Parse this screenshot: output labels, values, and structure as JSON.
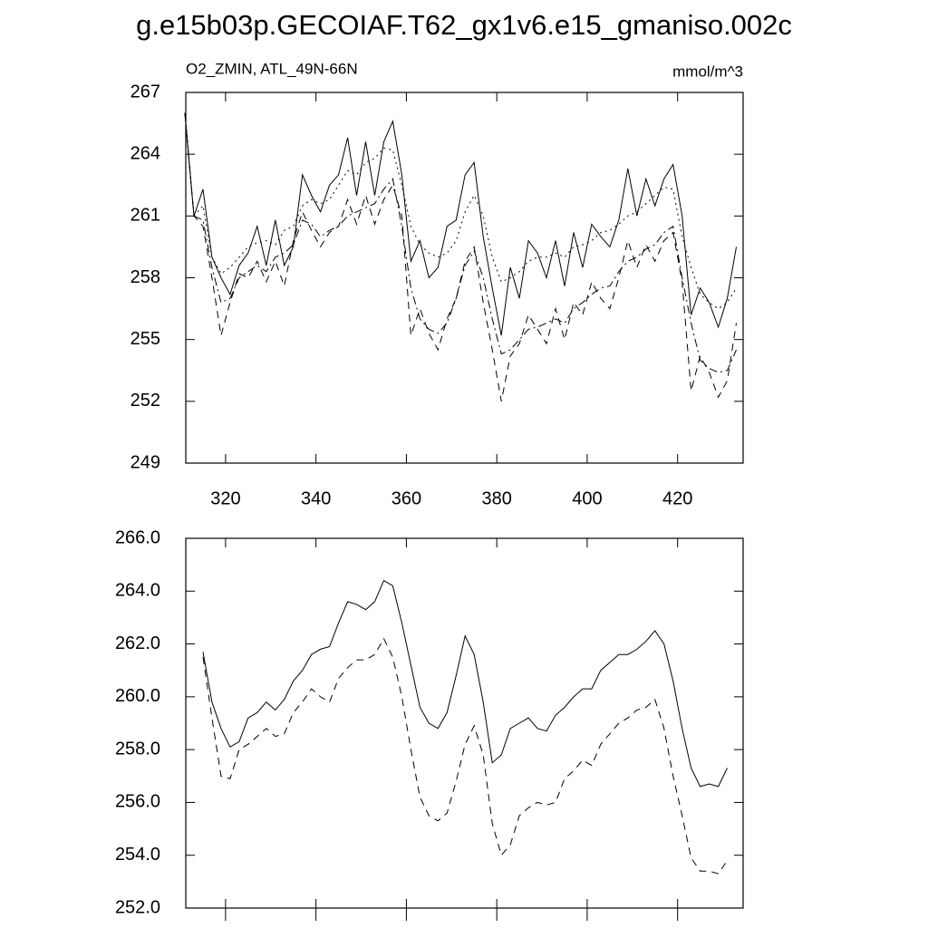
{
  "title": "g.e15b03p.GECOIAF.T62_gx1v6.e15_gmaniso.002c",
  "chart_data": [
    {
      "type": "line",
      "subtitle": "O2_ZMIN, ATL_49N-66N",
      "units": "mmol/m^3",
      "x": [
        311,
        313,
        315,
        317,
        319,
        321,
        323,
        325,
        327,
        329,
        331,
        333,
        335,
        337,
        339,
        341,
        343,
        345,
        347,
        349,
        351,
        353,
        355,
        357,
        359,
        361,
        363,
        365,
        367,
        369,
        371,
        373,
        375,
        377,
        379,
        381,
        383,
        385,
        387,
        389,
        391,
        393,
        395,
        397,
        399,
        401,
        403,
        405,
        407,
        409,
        411,
        413,
        415,
        417,
        419,
        421,
        423,
        425,
        427,
        429,
        431,
        433
      ],
      "xlim": [
        311.2,
        434.5
      ],
      "xticks": [
        320,
        340,
        360,
        380,
        400,
        420
      ],
      "ylim": [
        249,
        267
      ],
      "yticks": [
        249,
        252,
        255,
        258,
        261,
        264,
        267
      ],
      "series": [
        {
          "color": "#000000",
          "dash": "solid",
          "values": [
            266.0,
            261.0,
            262.3,
            259.0,
            258.0,
            257.2,
            258.6,
            259.2,
            260.5,
            258.6,
            260.8,
            258.6,
            259.5,
            263.0,
            262.0,
            261.2,
            262.5,
            263.0,
            264.8,
            262.0,
            264.6,
            262.0,
            264.6,
            265.6,
            263.0,
            258.8,
            259.8,
            258.0,
            258.5,
            260.5,
            260.8,
            263.0,
            263.6,
            260.0,
            257.5,
            255.2,
            258.5,
            257.0,
            259.8,
            259.2,
            258.0,
            259.8,
            257.6,
            260.2,
            258.5,
            260.6,
            260.0,
            259.5,
            260.8,
            263.3,
            261.0,
            262.8,
            261.5,
            262.8,
            263.5,
            261.0,
            256.2,
            257.5,
            256.8,
            255.6,
            257.0,
            259.5
          ]
        },
        {
          "color": "#000000",
          "dash": "dotted",
          "values": [
            266.0,
            261.0,
            261.5,
            259.0,
            258.2,
            258.5,
            259.0,
            259.5,
            259.7,
            259.8,
            259.6,
            260.3,
            260.5,
            261.5,
            261.8,
            261.6,
            261.8,
            262.5,
            263.2,
            263.0,
            263.6,
            263.8,
            264.3,
            264.2,
            262.5,
            260.5,
            259.6,
            259.2,
            259.0,
            259.2,
            259.8,
            261.2,
            262.0,
            261.0,
            259.0,
            257.8,
            258.0,
            258.3,
            258.8,
            259.0,
            259.0,
            259.2,
            259.0,
            259.5,
            259.6,
            259.8,
            260.2,
            260.3,
            260.6,
            261.0,
            261.2,
            261.6,
            262.0,
            262.4,
            262.3,
            260.0,
            258.5,
            257.2,
            256.8,
            256.5,
            256.8,
            257.5
          ]
        },
        {
          "color": "#000000",
          "dash": "dashdot",
          "values": [
            266.0,
            261.0,
            260.8,
            258.5,
            256.8,
            257.0,
            258.0,
            258.3,
            258.6,
            258.3,
            259.0,
            259.2,
            259.6,
            260.8,
            260.6,
            260.0,
            260.3,
            260.5,
            261.0,
            261.2,
            261.4,
            261.6,
            262.3,
            262.8,
            260.5,
            257.5,
            256.0,
            255.5,
            255.3,
            255.8,
            257.0,
            258.6,
            259.3,
            258.0,
            256.0,
            254.3,
            254.5,
            255.0,
            255.5,
            255.6,
            255.8,
            256.0,
            255.8,
            256.5,
            256.8,
            257.2,
            257.5,
            257.6,
            258.3,
            258.8,
            259.0,
            259.4,
            259.6,
            260.2,
            260.5,
            258.0,
            255.8,
            254.0,
            253.6,
            253.4,
            253.5,
            254.5
          ]
        },
        {
          "color": "#000000",
          "dash": "dashed",
          "values": [
            266.0,
            261.0,
            260.5,
            258.0,
            255.2,
            256.8,
            258.2,
            258.0,
            258.8,
            257.8,
            258.8,
            257.6,
            259.8,
            261.2,
            260.3,
            259.5,
            260.2,
            260.5,
            261.8,
            260.6,
            262.0,
            260.6,
            261.8,
            262.5,
            261.0,
            255.2,
            256.5,
            255.3,
            254.5,
            256.0,
            257.0,
            258.8,
            259.5,
            256.8,
            254.5,
            252.0,
            254.2,
            254.8,
            256.2,
            255.5,
            254.8,
            256.5,
            255.0,
            256.8,
            256.2,
            257.8,
            257.0,
            256.5,
            258.0,
            259.8,
            258.5,
            259.6,
            258.8,
            259.8,
            260.2,
            257.8,
            252.5,
            254.2,
            253.4,
            252.2,
            253.0,
            255.8
          ]
        }
      ]
    },
    {
      "type": "line",
      "x": [
        315,
        317,
        319,
        321,
        323,
        325,
        327,
        329,
        331,
        333,
        335,
        337,
        339,
        341,
        343,
        345,
        347,
        349,
        351,
        353,
        355,
        357,
        359,
        361,
        363,
        365,
        367,
        369,
        371,
        373,
        375,
        377,
        379,
        381,
        383,
        385,
        387,
        389,
        391,
        393,
        395,
        397,
        399,
        401,
        403,
        405,
        407,
        409,
        411,
        413,
        415,
        417,
        419,
        421,
        423,
        425,
        427,
        429,
        431
      ],
      "xlim": [
        311.2,
        434.5
      ],
      "xticks": [
        320,
        340,
        360,
        380,
        400,
        420
      ],
      "xtick_labels": false,
      "ylim": [
        252,
        266
      ],
      "yticks": [
        {
          "value": 252,
          "label": "252.0"
        },
        {
          "value": 254,
          "label": "254.0"
        },
        {
          "value": 256,
          "label": "256.0"
        },
        {
          "value": 258,
          "label": "258.0"
        },
        {
          "value": 260,
          "label": "260.0"
        },
        {
          "value": 262,
          "label": "262.0"
        },
        {
          "value": 264,
          "label": "264.0"
        },
        {
          "value": 266,
          "label": "266.0"
        }
      ],
      "series": [
        {
          "color": "#000000",
          "dash": "solid",
          "values": [
            261.7,
            259.8,
            258.8,
            258.1,
            258.3,
            259.2,
            259.4,
            259.8,
            259.5,
            259.9,
            260.6,
            261.0,
            261.6,
            261.8,
            261.9,
            262.8,
            263.6,
            263.5,
            263.3,
            263.6,
            264.4,
            264.2,
            262.8,
            261.2,
            259.6,
            259.0,
            258.8,
            259.4,
            260.8,
            262.3,
            261.6,
            259.8,
            257.5,
            257.8,
            258.8,
            259.0,
            259.2,
            258.8,
            258.7,
            259.3,
            259.6,
            260.0,
            260.3,
            260.3,
            261.0,
            261.3,
            261.6,
            261.6,
            261.8,
            262.1,
            262.5,
            262.0,
            260.6,
            258.8,
            257.3,
            256.6,
            256.7,
            256.6,
            257.3
          ]
        },
        {
          "color": "#000000",
          "dash": "dashed",
          "values": [
            261.5,
            259.2,
            257.0,
            256.9,
            258.0,
            258.2,
            258.5,
            258.8,
            258.5,
            258.6,
            259.4,
            259.8,
            260.3,
            260.0,
            259.8,
            260.7,
            261.1,
            261.4,
            261.4,
            261.6,
            262.2,
            261.5,
            260.0,
            258.0,
            256.2,
            255.5,
            255.3,
            255.6,
            256.8,
            258.2,
            258.9,
            257.8,
            255.2,
            254.0,
            254.4,
            255.5,
            255.8,
            256.0,
            255.9,
            256.0,
            256.9,
            257.2,
            257.6,
            257.4,
            258.2,
            258.6,
            259.0,
            259.2,
            259.5,
            259.6,
            259.9,
            258.8,
            257.0,
            255.5,
            253.9,
            253.4,
            253.4,
            253.3,
            253.8
          ]
        }
      ]
    }
  ]
}
